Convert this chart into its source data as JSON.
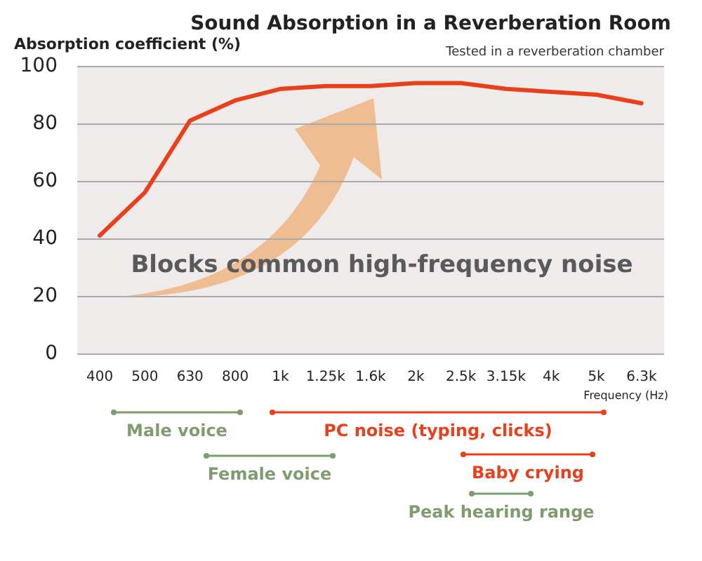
{
  "chart_data": {
    "type": "line",
    "title": "Sound Absorption in a Reverberation Room",
    "subtitle": "Tested in a reverberation chamber",
    "ylabel": "Absorption coefficient (%)",
    "xlabel": "Frequency (Hz)",
    "categories": [
      "400",
      "500",
      "630",
      "800",
      "1k",
      "1.25k",
      "1.6k",
      "2k",
      "2.5k",
      "3.15k",
      "4k",
      "5k",
      "6.3k"
    ],
    "values": [
      41,
      56,
      81,
      88,
      92,
      93,
      93,
      94,
      94,
      92,
      91,
      90,
      87
    ],
    "color": "#e8401c",
    "ylim": [
      0,
      100
    ],
    "yticks": [
      0,
      20,
      40,
      60,
      80,
      100
    ],
    "grid": "y",
    "annotations": [
      "Blocks common high-frequency noise",
      "Male voice",
      "Female voice",
      "PC noise (typing, clicks)",
      "Baby crying",
      "Peak hearing range"
    ]
  }
}
